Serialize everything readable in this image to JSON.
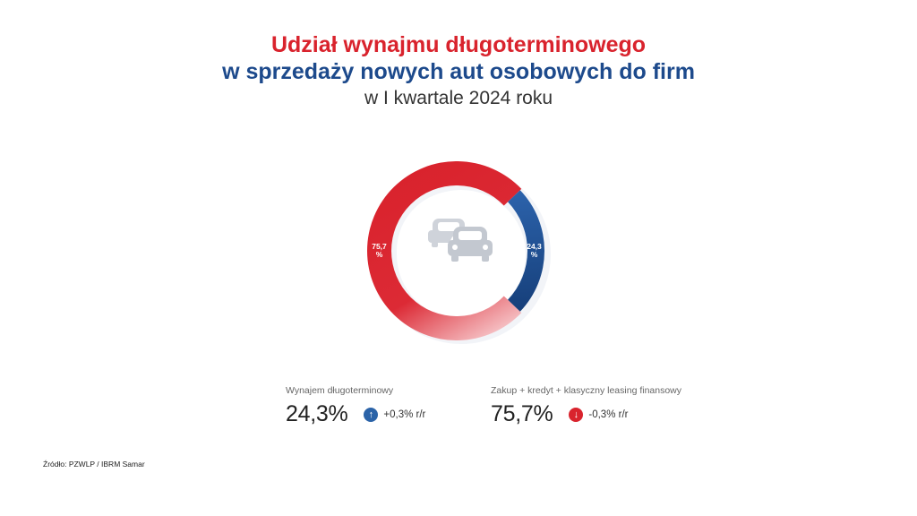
{
  "title": {
    "line1": "Udział wynajmu długoterminowego",
    "line2": "w sprzedaży nowych aut osobowych do firm",
    "line3": "w I kwartale 2024 roku"
  },
  "chart_data": {
    "type": "pie",
    "variant": "donut",
    "series": [
      {
        "label": "Wynajem długoterminowy",
        "value": 24.3,
        "display_label": "24,3 %",
        "color": "#1d4a8c"
      },
      {
        "label": "Zakup + kredyt + klasyczny leasing finansowy",
        "value": 75.7,
        "display_label": "75,7 %",
        "color": "#d9232d"
      }
    ],
    "center_icon": "two-cars-icon"
  },
  "legend": {
    "item1": {
      "label": "Wynajem długoterminowy",
      "value": "24,3%",
      "delta": "+0,3% r/r",
      "direction": "up",
      "color": "#2b63a8"
    },
    "item2": {
      "label": "Zakup + kredyt + klasyczny leasing finansowy",
      "value": "75,7%",
      "delta": "-0,3% r/r",
      "direction": "down",
      "color": "#d9232d"
    }
  },
  "source": "Źródło: PZWLP / IBRM Samar",
  "colors": {
    "accent_red": "#d9232d",
    "accent_blue": "#1d4a8c"
  }
}
